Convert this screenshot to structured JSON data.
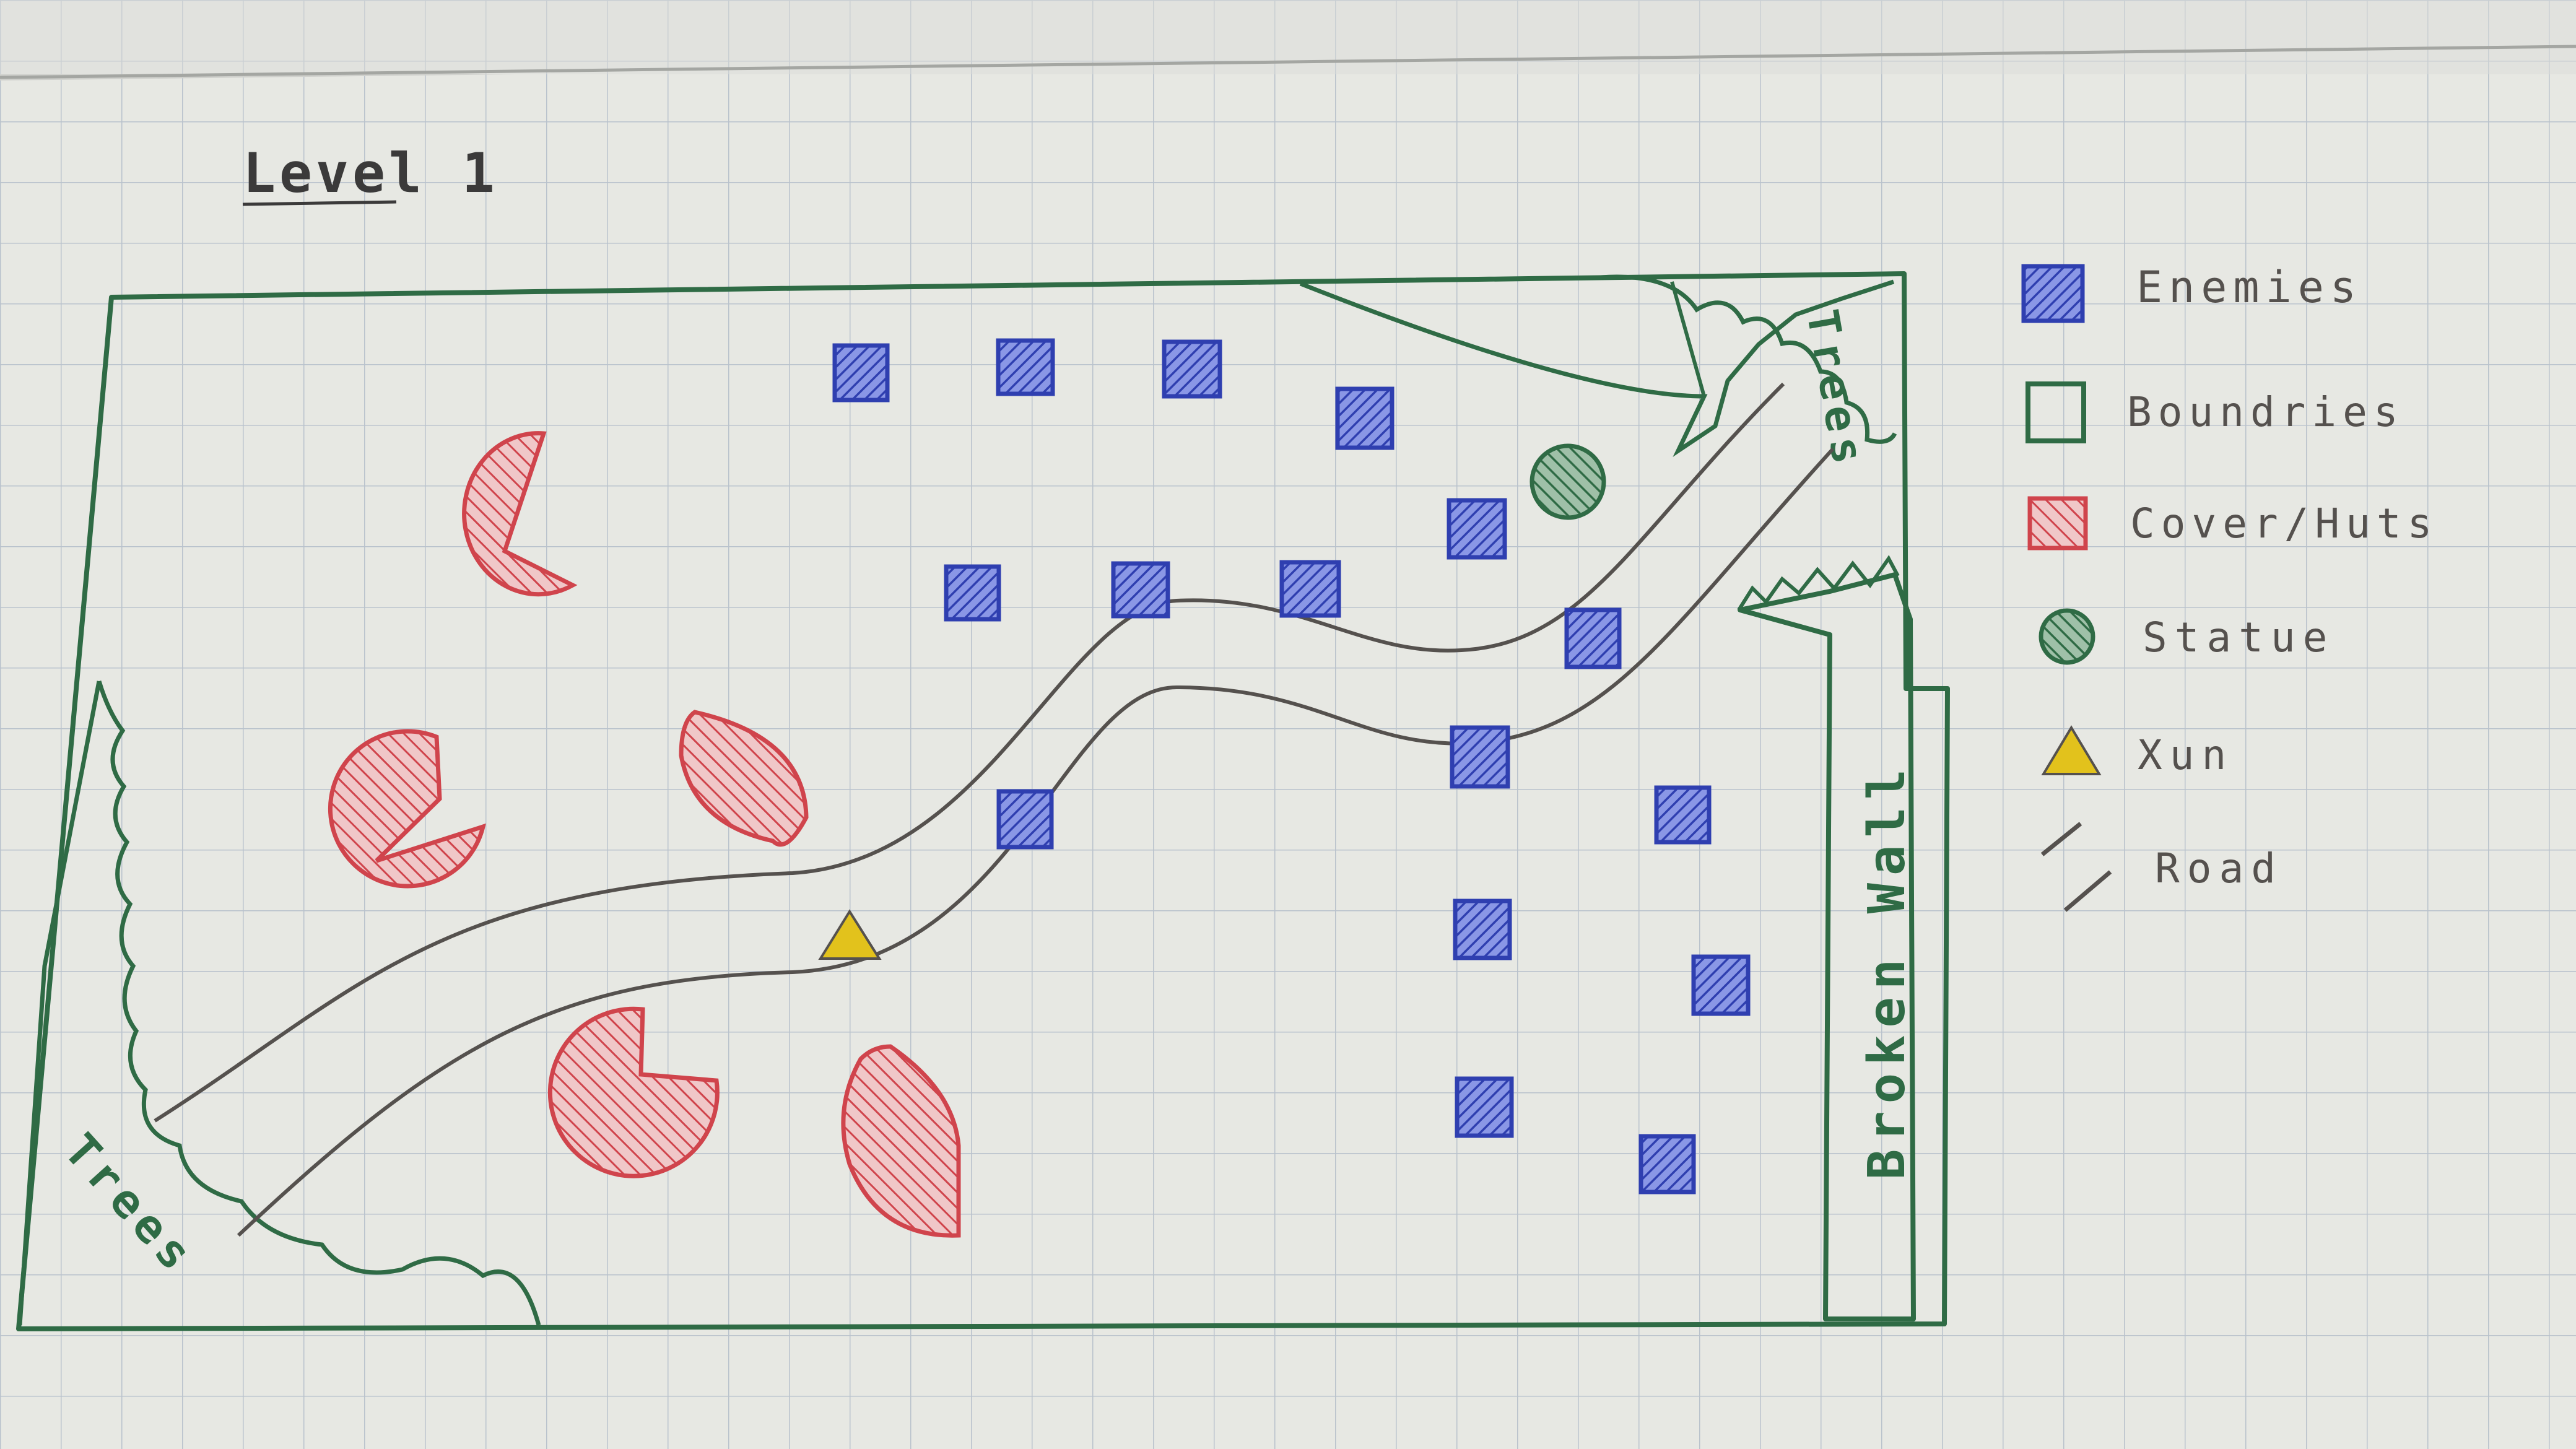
{
  "title": "Level 1",
  "labels": {
    "trees_top": "Trees",
    "trees_bottom": "Trees",
    "wall": "Broken Wall"
  },
  "legend": [
    {
      "key": "enemies",
      "label": "Enemies",
      "icon": "hatched-square-icon",
      "color": "#2f3fb0"
    },
    {
      "key": "boundaries",
      "label": "Boundries",
      "icon": "outline-square-icon",
      "color": "#2f6b45"
    },
    {
      "key": "cover",
      "label": "Cover/Huts",
      "icon": "hatched-square-icon",
      "color": "#d0444c"
    },
    {
      "key": "statue",
      "label": "Statue",
      "icon": "hatched-circle-icon",
      "color": "#2f6b45"
    },
    {
      "key": "xun",
      "label": "Xun",
      "icon": "triangle-icon",
      "color": "#e2c21c"
    },
    {
      "key": "road",
      "label": "Road",
      "icon": "double-line-icon",
      "color": "#55514e"
    }
  ],
  "colors": {
    "paper": "#e7e8e3",
    "grid": "#b9c2cc",
    "ink_green": "#2f6b45",
    "ink_blue": "#2f3fb0",
    "ink_red": "#d0444c",
    "ink_yellow": "#e2c21c",
    "ink_gray": "#55514e",
    "title_ink": "#3b3a3a"
  }
}
